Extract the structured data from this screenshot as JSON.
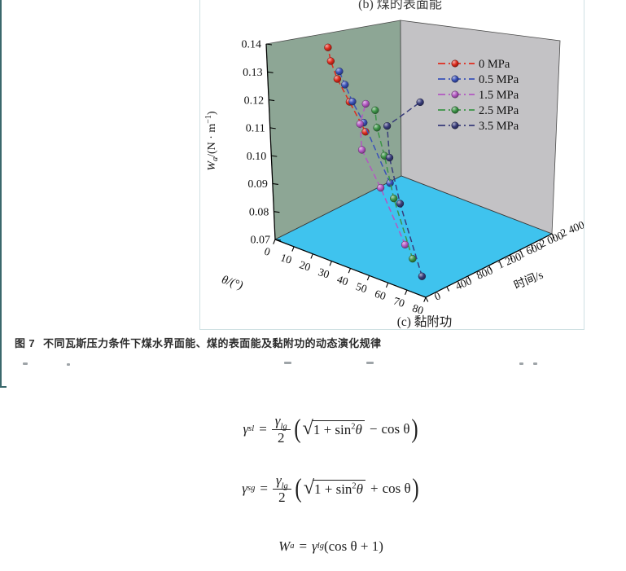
{
  "page": {
    "subfigure_b_caption": "(b) 煤的表面能",
    "figure_label": "图 7",
    "figure_caption": "不同瓦斯压力条件下煤水界面能、煤的表面能及黏附功的动态演化规律"
  },
  "chart_data": {
    "type": "scatter3d",
    "subtitle": "(c) 黏附功",
    "grid": false,
    "legend_position": "right-wall-top",
    "wall_colors": {
      "left": "#8da695",
      "right": "#c3c2c5",
      "floor": "#3fc3ee"
    },
    "axes": {
      "x": {
        "label": "θ/(°)",
        "range": [
          0,
          80
        ],
        "ticks": [
          0,
          10,
          20,
          30,
          40,
          50,
          60,
          70,
          80
        ]
      },
      "y": {
        "label": "时间/s",
        "range": [
          0,
          2400
        ],
        "ticks": [
          0,
          400,
          800,
          1200,
          1600,
          2000,
          2400
        ],
        "tick_labels": [
          "0",
          "400",
          "800",
          "1 200",
          "1 600",
          "2 000",
          "2 400"
        ]
      },
      "z": {
        "label": "Wa/(N · m⁻¹)",
        "label_parts": {
          "base": "W",
          "sub": "a",
          "rest": "/(N · m",
          "sup": "−1",
          "close": ")"
        },
        "range": [
          0.07,
          0.14
        ],
        "ticks": [
          0.07,
          0.08,
          0.09,
          0.1,
          0.11,
          0.12,
          0.13,
          0.14
        ]
      }
    },
    "series": [
      {
        "name": "0 MPa",
        "color": "#df2b1d",
        "points": [
          {
            "theta": 48,
            "time": 0,
            "Wa": 0.121
          },
          {
            "theta": 37,
            "time": 90,
            "Wa": 0.128
          },
          {
            "theta": 28,
            "time": 180,
            "Wa": 0.133
          },
          {
            "theta": 22,
            "time": 270,
            "Wa": 0.137
          },
          {
            "theta": 18,
            "time": 360,
            "Wa": 0.14
          }
        ]
      },
      {
        "name": "0.5 MPa",
        "color": "#3a51b8",
        "points": [
          {
            "theta": 61,
            "time": 0,
            "Wa": 0.106
          },
          {
            "theta": 42,
            "time": 180,
            "Wa": 0.121
          },
          {
            "theta": 31,
            "time": 360,
            "Wa": 0.124
          },
          {
            "theta": 22,
            "time": 540,
            "Wa": 0.126
          },
          {
            "theta": 14,
            "time": 720,
            "Wa": 0.127
          }
        ]
      },
      {
        "name": "1.5 MPa",
        "color": "#b358c2",
        "points": [
          {
            "theta": 69,
            "time": 0,
            "Wa": 0.086
          },
          {
            "theta": 51,
            "time": 180,
            "Wa": 0.1
          },
          {
            "theta": 36,
            "time": 360,
            "Wa": 0.108
          },
          {
            "theta": 30,
            "time": 540,
            "Wa": 0.114
          },
          {
            "theta": 28,
            "time": 720,
            "Wa": 0.119
          }
        ]
      },
      {
        "name": "2.5 MPa",
        "color": "#3c9447",
        "points": [
          {
            "theta": 73,
            "time": 0,
            "Wa": 0.082
          },
          {
            "theta": 58,
            "time": 180,
            "Wa": 0.098
          },
          {
            "theta": 48,
            "time": 360,
            "Wa": 0.109
          },
          {
            "theta": 39,
            "time": 540,
            "Wa": 0.115
          },
          {
            "theta": 33,
            "time": 720,
            "Wa": 0.118
          }
        ]
      },
      {
        "name": "3.5 MPa",
        "color": "#383c7a",
        "points": [
          {
            "theta": 78,
            "time": 0,
            "Wa": 0.077
          },
          {
            "theta": 58,
            "time": 300,
            "Wa": 0.095
          },
          {
            "theta": 44,
            "time": 600,
            "Wa": 0.105
          },
          {
            "theta": 26,
            "time": 1200,
            "Wa": 0.106
          },
          {
            "theta": 10,
            "time": 2400,
            "Wa": 0.099
          }
        ]
      }
    ]
  },
  "equations": [
    {
      "lhs": "γ",
      "lhs_sub": "sl",
      "rel": "=",
      "num": "γ",
      "num_sub": "lg",
      "den": "2",
      "rad_pre": "1 + sin",
      "rad_sup": "2",
      "rad_var": "θ",
      "op": "−",
      "tail": "cos θ"
    },
    {
      "lhs": "γ",
      "lhs_sub": "sg",
      "rel": "=",
      "num": "γ",
      "num_sub": "lg",
      "den": "2",
      "rad_pre": "1 + sin",
      "rad_sup": "2",
      "rad_var": "θ",
      "op": "+",
      "tail": "cos θ"
    },
    {
      "lhs": "W",
      "lhs_sub": "a",
      "rel": "=",
      "coef": "γ",
      "coef_sub": "lg",
      "tail": "(cos θ + 1)"
    }
  ]
}
